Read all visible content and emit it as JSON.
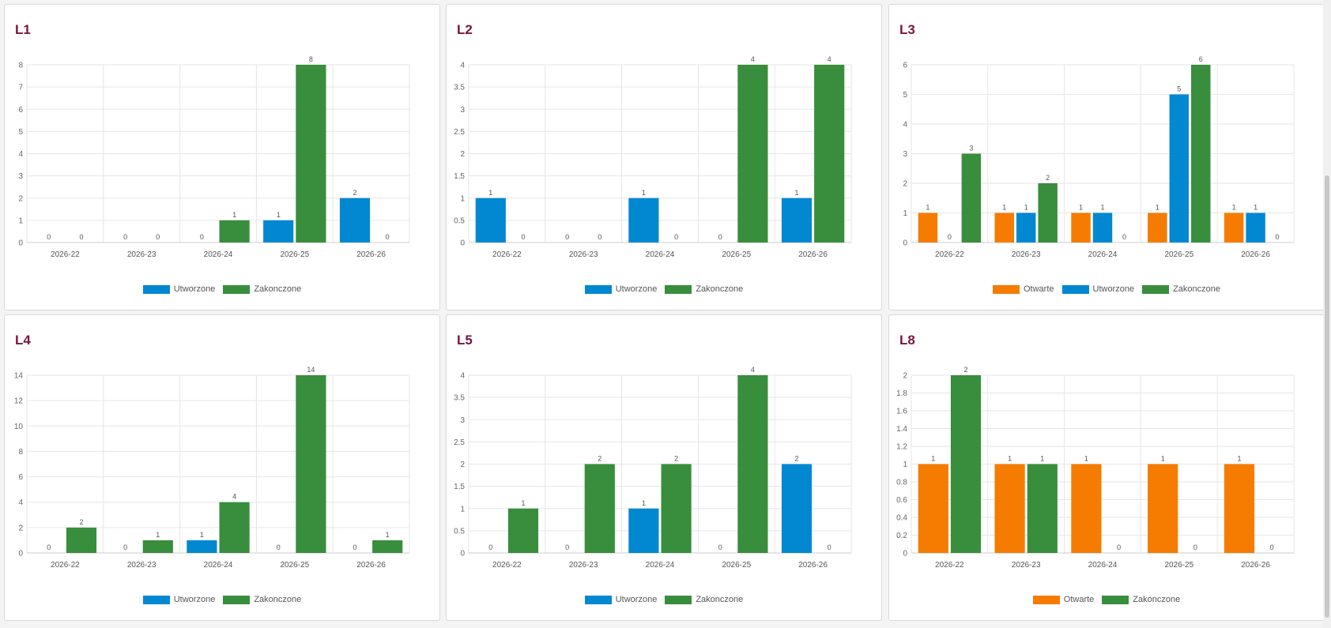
{
  "colors": {
    "otwarte": "#f57c00",
    "utworzone": "#0288d1",
    "zakonczone": "#388e3c"
  },
  "chart_data": [
    {
      "type": "bar",
      "title": "L1",
      "categories": [
        "2026-22",
        "2026-23",
        "2026-24",
        "2026-25",
        "2026-26"
      ],
      "ylim": [
        0,
        8
      ],
      "yticks": [
        "0",
        "1",
        "2",
        "3",
        "4",
        "5",
        "6",
        "7",
        "8"
      ],
      "series": [
        {
          "name": "Utworzone",
          "color_key": "utworzone",
          "values": [
            0,
            0,
            0,
            1,
            2
          ]
        },
        {
          "name": "Zakonczone",
          "color_key": "zakonczone",
          "values": [
            0,
            0,
            1,
            8,
            0
          ]
        }
      ],
      "grid": true,
      "legend": "bottom"
    },
    {
      "type": "bar",
      "title": "L2",
      "categories": [
        "2026-22",
        "2026-23",
        "2026-24",
        "2026-25",
        "2026-26"
      ],
      "ylim": [
        0,
        4
      ],
      "yticks": [
        "0",
        "0.5",
        "1",
        "1.5",
        "2",
        "2.5",
        "3",
        "3.5",
        "4"
      ],
      "series": [
        {
          "name": "Utworzone",
          "color_key": "utworzone",
          "values": [
            1,
            0,
            1,
            0,
            1
          ]
        },
        {
          "name": "Zakonczone",
          "color_key": "zakonczone",
          "values": [
            0,
            0,
            0,
            4,
            4
          ]
        }
      ],
      "grid": true,
      "legend": "bottom"
    },
    {
      "type": "bar",
      "title": "L3",
      "categories": [
        "2026-22",
        "2026-23",
        "2026-24",
        "2026-25",
        "2026-26"
      ],
      "ylim": [
        0,
        6
      ],
      "yticks": [
        "0",
        "1",
        "2",
        "3",
        "4",
        "5",
        "6"
      ],
      "series": [
        {
          "name": "Otwarte",
          "color_key": "otwarte",
          "values": [
            1,
            1,
            1,
            1,
            1
          ]
        },
        {
          "name": "Utworzone",
          "color_key": "utworzone",
          "values": [
            0,
            1,
            1,
            5,
            1
          ]
        },
        {
          "name": "Zakonczone",
          "color_key": "zakonczone",
          "values": [
            3,
            2,
            0,
            6,
            0
          ]
        }
      ],
      "grid": true,
      "legend": "bottom"
    },
    {
      "type": "bar",
      "title": "L4",
      "categories": [
        "2026-22",
        "2026-23",
        "2026-24",
        "2026-25",
        "2026-26"
      ],
      "ylim": [
        0,
        14
      ],
      "yticks": [
        "0",
        "2",
        "4",
        "6",
        "8",
        "10",
        "12",
        "14"
      ],
      "series": [
        {
          "name": "Utworzone",
          "color_key": "utworzone",
          "values": [
            0,
            0,
            1,
            0,
            0
          ]
        },
        {
          "name": "Zakonczone",
          "color_key": "zakonczone",
          "values": [
            2,
            1,
            4,
            14,
            1
          ]
        }
      ],
      "grid": true,
      "legend": "bottom"
    },
    {
      "type": "bar",
      "title": "L5",
      "categories": [
        "2026-22",
        "2026-23",
        "2026-24",
        "2026-25",
        "2026-26"
      ],
      "ylim": [
        0,
        4
      ],
      "yticks": [
        "0",
        "0.5",
        "1",
        "1.5",
        "2",
        "2.5",
        "3",
        "3.5",
        "4"
      ],
      "series": [
        {
          "name": "Utworzone",
          "color_key": "utworzone",
          "values": [
            0,
            0,
            1,
            0,
            2
          ]
        },
        {
          "name": "Zakonczone",
          "color_key": "zakonczone",
          "values": [
            1,
            2,
            2,
            4,
            0
          ]
        }
      ],
      "grid": true,
      "legend": "bottom"
    },
    {
      "type": "bar",
      "title": "L8",
      "categories": [
        "2026-22",
        "2026-23",
        "2026-24",
        "2026-25",
        "2026-26"
      ],
      "ylim": [
        0,
        2
      ],
      "yticks": [
        "0",
        "0.2",
        "0.4",
        "0.6",
        "0.8",
        "1",
        "1.2",
        "1.4",
        "1.6",
        "1.8",
        "2"
      ],
      "series": [
        {
          "name": "Otwarte",
          "color_key": "otwarte",
          "values": [
            1,
            1,
            1,
            1,
            1
          ]
        },
        {
          "name": "Zakonczone",
          "color_key": "zakonczone",
          "values": [
            2,
            1,
            0,
            0,
            0
          ]
        }
      ],
      "grid": true,
      "legend": "bottom"
    }
  ]
}
